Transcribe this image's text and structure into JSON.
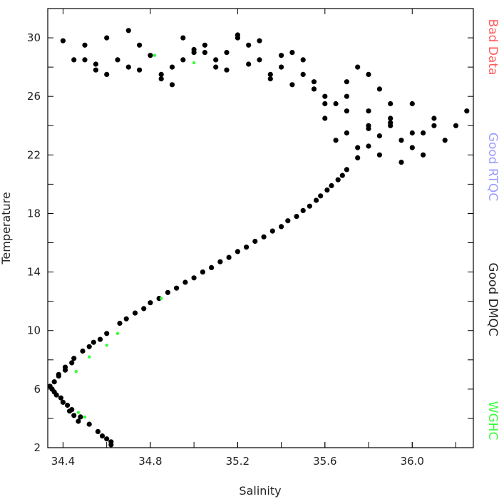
{
  "chart_data": {
    "type": "scatter",
    "xlabel": "Salinity",
    "ylabel": "Temperature",
    "xlim": [
      34.33,
      36.28
    ],
    "ylim": [
      2,
      32
    ],
    "xticks": [
      34.4,
      34.8,
      35.2,
      35.6,
      36.0
    ],
    "xtick_labels": [
      "34.4",
      "34.8",
      "35.2",
      "35.6",
      "36.0"
    ],
    "yticks": [
      2,
      6,
      10,
      14,
      18,
      22,
      26,
      30
    ],
    "ytick_labels": [
      "2",
      "6",
      "10",
      "14",
      "18",
      "22",
      "26",
      "30"
    ],
    "grid": false,
    "legend_position": "right-outside-vertical",
    "legend": [
      {
        "label": "Bad Data",
        "color": "#ff5a5a"
      },
      {
        "label": "Good RTQC",
        "color": "#9a9aff"
      },
      {
        "label": "Good DMQC",
        "color": "#222222"
      },
      {
        "label": "WGHC",
        "color": "#33ff33"
      }
    ],
    "series": [
      {
        "name": "Good DMQC",
        "color": "#000000",
        "x": [
          34.62,
          34.6,
          34.56,
          34.52,
          34.48,
          34.44,
          34.4,
          34.37,
          34.35,
          34.36,
          34.38,
          34.41,
          34.45,
          34.49,
          34.54,
          34.6,
          34.66,
          34.73,
          34.8,
          34.88,
          34.96,
          35.04,
          35.12,
          35.2,
          35.28,
          35.36,
          35.43,
          35.5,
          35.56,
          35.61,
          35.66,
          35.7,
          35.75,
          35.8,
          35.85,
          35.9,
          35.95,
          36.0,
          36.05,
          36.1,
          36.15,
          36.2,
          36.25,
          35.85,
          35.8,
          35.75,
          35.7,
          35.65,
          35.6,
          35.55,
          35.5,
          35.45,
          35.4,
          35.35,
          35.3,
          35.25,
          35.2,
          35.15,
          35.1,
          35.05,
          35.0,
          34.95,
          34.9,
          34.85,
          34.8,
          34.75,
          34.7,
          34.65,
          34.6,
          34.55,
          34.5,
          34.45,
          34.4,
          35.6,
          35.7,
          35.8,
          35.9,
          36.0,
          36.1,
          35.65,
          35.75,
          35.85,
          35.95,
          36.05,
          35.55,
          35.6,
          35.7,
          35.8,
          35.9,
          36.0,
          35.7,
          35.8,
          35.9,
          35.5,
          35.4,
          35.3,
          35.2,
          35.1,
          35.0,
          34.95,
          35.45,
          35.35,
          35.25,
          35.15,
          35.05,
          34.9,
          34.85,
          34.75,
          34.7,
          34.6,
          34.55,
          34.5,
          34.62,
          34.58,
          34.47,
          34.45,
          34.43,
          34.42,
          34.39,
          34.36,
          34.34,
          34.38,
          34.41,
          34.44,
          34.52,
          34.57,
          34.69,
          34.77,
          34.84,
          34.92,
          35.0,
          35.08,
          35.16,
          35.24,
          35.32,
          35.4,
          35.47,
          35.53,
          35.58,
          35.63,
          35.68
        ],
        "y": [
          2.2,
          2.6,
          3.1,
          3.6,
          4.1,
          4.6,
          5.1,
          5.6,
          6.0,
          6.5,
          7.0,
          7.5,
          8.1,
          8.6,
          9.2,
          9.8,
          10.5,
          11.2,
          11.9,
          12.6,
          13.3,
          14.0,
          14.7,
          15.4,
          16.1,
          16.8,
          17.5,
          18.2,
          18.9,
          19.6,
          20.3,
          21.0,
          21.8,
          22.6,
          23.3,
          24.0,
          23.0,
          22.5,
          23.5,
          24.5,
          23.0,
          24.0,
          25.0,
          26.5,
          27.5,
          28.0,
          27.0,
          25.5,
          26.0,
          27.0,
          28.5,
          29.0,
          28.0,
          27.5,
          28.5,
          29.5,
          30.0,
          29.0,
          28.0,
          29.5,
          29.0,
          28.5,
          28.0,
          27.5,
          28.8,
          29.5,
          30.5,
          28.5,
          30.0,
          27.8,
          28.5,
          28.5,
          29.8,
          24.5,
          25.0,
          24.0,
          25.5,
          23.5,
          24.0,
          23.0,
          22.5,
          22.0,
          21.5,
          22.0,
          26.5,
          25.5,
          26.0,
          25.0,
          24.5,
          25.5,
          23.5,
          23.8,
          24.2,
          27.5,
          28.8,
          29.8,
          30.2,
          28.5,
          29.2,
          30.0,
          26.8,
          27.2,
          28.2,
          27.8,
          29.0,
          26.8,
          27.2,
          27.8,
          28.0,
          27.5,
          28.2,
          29.5,
          2.4,
          2.8,
          3.8,
          4.2,
          4.5,
          4.9,
          5.4,
          5.8,
          6.2,
          6.9,
          7.3,
          7.8,
          8.9,
          9.4,
          10.8,
          11.5,
          12.2,
          12.9,
          13.6,
          14.3,
          15.0,
          15.7,
          16.4,
          17.1,
          17.8,
          18.5,
          19.2,
          19.9,
          20.6
        ]
      },
      {
        "name": "WGHC",
        "color": "#33ff33",
        "x": [
          34.5,
          34.47,
          34.46,
          34.52,
          34.6,
          34.65,
          34.85,
          34.82,
          35.0
        ],
        "y": [
          4.1,
          4.4,
          7.2,
          8.2,
          9.0,
          9.8,
          12.2,
          28.8,
          28.3
        ]
      }
    ]
  }
}
